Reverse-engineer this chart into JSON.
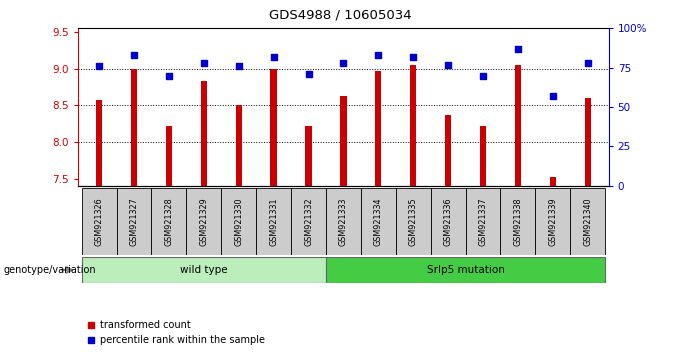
{
  "title": "GDS4988 / 10605034",
  "samples": [
    "GSM921326",
    "GSM921327",
    "GSM921328",
    "GSM921329",
    "GSM921330",
    "GSM921331",
    "GSM921332",
    "GSM921333",
    "GSM921334",
    "GSM921335",
    "GSM921336",
    "GSM921337",
    "GSM921338",
    "GSM921339",
    "GSM921340"
  ],
  "transformed_count": [
    8.57,
    9.0,
    8.22,
    8.83,
    8.5,
    9.0,
    8.22,
    8.62,
    8.97,
    9.05,
    8.37,
    8.22,
    9.05,
    7.52,
    8.6
  ],
  "percentile_rank": [
    76,
    83,
    70,
    78,
    76,
    82,
    71,
    78,
    83,
    82,
    77,
    70,
    87,
    57,
    78
  ],
  "group1_label": "wild type",
  "group2_label": "Srlp5 mutation",
  "genotype_label": "genotype/variation",
  "ylim_left": [
    7.4,
    9.55
  ],
  "ylim_right": [
    0,
    100
  ],
  "yticks_left": [
    7.5,
    8.0,
    8.5,
    9.0,
    9.5
  ],
  "yticks_right": [
    0,
    25,
    50,
    75,
    100
  ],
  "ytick_labels_right": [
    "0",
    "25",
    "50",
    "75",
    "100%"
  ],
  "bar_color": "#cc0000",
  "dot_color": "#0000cc",
  "tick_area_color": "#cccccc",
  "group1_color": "#bbeebb",
  "group2_color": "#44cc44",
  "legend_tc": "transformed count",
  "legend_pr": "percentile rank within the sample",
  "bar_width": 0.18
}
